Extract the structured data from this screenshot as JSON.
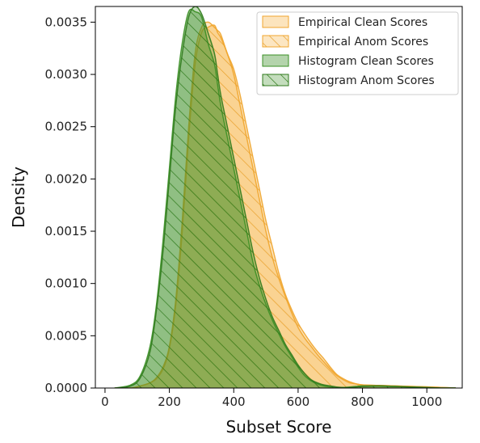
{
  "chart_data": {
    "type": "area",
    "title": "",
    "xlabel": "Subset Score",
    "ylabel": "Density",
    "xlim": [
      -30,
      1110
    ],
    "ylim": [
      0,
      0.00365
    ],
    "xticks": [
      0,
      200,
      400,
      600,
      800,
      1000
    ],
    "xtick_labels": [
      "0",
      "200",
      "400",
      "600",
      "800",
      "1000"
    ],
    "yticks": [
      0,
      0.0005,
      0.001,
      0.0015,
      0.002,
      0.0025,
      0.003,
      0.0035
    ],
    "ytick_labels": [
      "0.0000",
      "0.0005",
      "0.0010",
      "0.0015",
      "0.0020",
      "0.0025",
      "0.0030",
      "0.0035"
    ],
    "grid": false,
    "legend_position": "top-right",
    "x": [
      30,
      80,
      110,
      140,
      160,
      180,
      200,
      220,
      240,
      260,
      280,
      300,
      320,
      340,
      350,
      360,
      380,
      400,
      420,
      440,
      460,
      480,
      500,
      520,
      540,
      560,
      580,
      600,
      620,
      640,
      660,
      680,
      700,
      720,
      740,
      760,
      780,
      800,
      850,
      900,
      950,
      1000,
      1050,
      1090
    ],
    "series": [
      {
        "name": "Empirical Clean Scores",
        "color": "#f5a623",
        "hatch": false,
        "values": [
          0,
          0,
          2e-05,
          5e-05,
          9e-05,
          0.00018,
          0.00038,
          0.0008,
          0.0015,
          0.0024,
          0.0031,
          0.0034,
          0.00345,
          0.00347,
          0.0034,
          0.00335,
          0.0032,
          0.003,
          0.0027,
          0.0024,
          0.0021,
          0.0018,
          0.0015,
          0.00125,
          0.00105,
          0.00088,
          0.00072,
          0.00058,
          0.00048,
          0.0004,
          0.00032,
          0.00025,
          0.00018,
          0.00012,
          8e-05,
          5e-05,
          4e-05,
          3e-05,
          2.5e-05,
          2e-05,
          1.5e-05,
          1.2e-05,
          5e-06,
          0
        ]
      },
      {
        "name": "Empirical Anom Scores",
        "color": "#f5a623",
        "hatch": true,
        "values": [
          0,
          0,
          2e-05,
          5e-05,
          0.0001,
          0.0002,
          0.0004,
          0.00085,
          0.0016,
          0.0025,
          0.0032,
          0.00345,
          0.0035,
          0.00345,
          0.00342,
          0.00338,
          0.0032,
          0.00305,
          0.0028,
          0.0025,
          0.0022,
          0.0019,
          0.0016,
          0.00135,
          0.0011,
          0.0009,
          0.00075,
          0.00062,
          0.00052,
          0.00043,
          0.00035,
          0.00028,
          0.0002,
          0.00013,
          9e-05,
          6e-05,
          4e-05,
          3e-05,
          2.5e-05,
          2e-05,
          1.5e-05,
          1e-05,
          5e-06,
          0
        ]
      },
      {
        "name": "Histogram Clean Scores",
        "color": "#3a8f24",
        "hatch": false,
        "values": [
          0,
          3e-05,
          0.00012,
          0.0004,
          0.0008,
          0.0014,
          0.0021,
          0.0028,
          0.0033,
          0.0036,
          0.0036,
          0.00355,
          0.0033,
          0.0031,
          0.0029,
          0.0027,
          0.0024,
          0.0021,
          0.0018,
          0.0015,
          0.0012,
          0.00098,
          0.0008,
          0.00065,
          0.00052,
          0.0004,
          0.0003,
          0.0002,
          0.00012,
          7e-05,
          4e-05,
          2e-05,
          1e-05,
          5e-06,
          5e-06,
          1e-05,
          1.5e-05,
          2e-05,
          2e-05,
          1.5e-05,
          1e-05,
          5e-06,
          0,
          0
        ]
      },
      {
        "name": "Histogram Anom Scores",
        "color": "#3a8f24",
        "hatch": true,
        "values": [
          0,
          2e-05,
          0.0001,
          0.00035,
          0.00075,
          0.0013,
          0.002,
          0.0027,
          0.0032,
          0.00355,
          0.00365,
          0.00358,
          0.0034,
          0.0032,
          0.003,
          0.0028,
          0.0025,
          0.0022,
          0.0019,
          0.0016,
          0.0013,
          0.00105,
          0.00085,
          0.00068,
          0.00055,
          0.00042,
          0.00032,
          0.00022,
          0.00014,
          8e-05,
          5e-05,
          3e-05,
          2e-05,
          1e-05,
          5e-06,
          5e-06,
          1e-05,
          1.5e-05,
          2e-05,
          1.5e-05,
          1e-05,
          5e-06,
          0,
          0
        ]
      }
    ]
  }
}
